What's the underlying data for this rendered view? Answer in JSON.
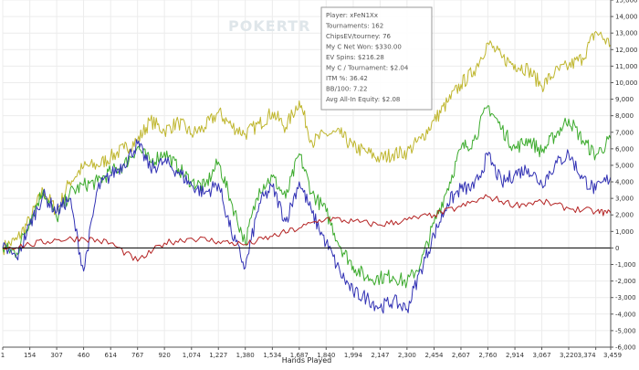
{
  "watermark": "POKERTR",
  "stats_box": {
    "lines": [
      "Player: xFeN1Xx",
      "Tournaments: 162",
      "ChipsEV/tourney: 76",
      "My C Net Won: $330.00",
      "EV Spins: $216.28",
      "My C / Tournament: $2.04",
      "ITM %: 36.42",
      "BB/100: 7.22",
      "Avg All-In Equity: $2.08"
    ]
  },
  "chart_data": {
    "type": "line",
    "title": "",
    "xlabel": "Hands Played",
    "ylabel": "",
    "xlim": [
      0,
      3459
    ],
    "ylim": [
      -6000,
      15000
    ],
    "x_ticks": [
      0,
      154,
      307,
      460,
      614,
      767,
      920,
      1074,
      1227,
      1380,
      1534,
      1687,
      1840,
      1994,
      2147,
      2300,
      2454,
      2607,
      2760,
      2914,
      3067,
      3220,
      3374,
      3459
    ],
    "x_tick_labels": [
      "1",
      "154",
      "307",
      "460",
      "614",
      "767",
      "920",
      "1,074",
      "1,227",
      "1,380",
      "1,534",
      "1,687",
      "1,840",
      "1,994",
      "2,147",
      "2,300",
      "2,454",
      "2,607",
      "2,760",
      "2,914",
      "3,067",
      "3,220",
      "3,374",
      "3,459"
    ],
    "y_ticks": [
      -6000,
      -5000,
      -4000,
      -3000,
      -2000,
      -1000,
      0,
      1000,
      2000,
      3000,
      4000,
      5000,
      6000,
      7000,
      8000,
      9000,
      10000,
      11000,
      12000,
      13000,
      14000,
      15000
    ],
    "y_tick_labels": [
      "-6,000",
      "-5,000",
      "-4,000",
      "-3,000",
      "-2,000",
      "-1,000",
      "0",
      "1,000",
      "2,000",
      "3,000",
      "4,000",
      "5,000",
      "6,000",
      "7,000",
      "8,000",
      "9,000",
      "10,000",
      "11,000",
      "12,000",
      "13,000",
      "14,000",
      "15,000"
    ],
    "grid": true,
    "series": [
      {
        "color": "#bfb62e",
        "x": [
          0,
          80,
          154,
          230,
          307,
          380,
          460,
          540,
          614,
          690,
          767,
          840,
          920,
          1000,
          1074,
          1150,
          1227,
          1300,
          1380,
          1460,
          1534,
          1610,
          1687,
          1760,
          1840,
          1920,
          1994,
          2070,
          2147,
          2220,
          2300,
          2380,
          2454,
          2530,
          2607,
          2680,
          2760,
          2840,
          2914,
          2990,
          3067,
          3140,
          3220,
          3300,
          3374,
          3459
        ],
        "y": [
          0,
          500,
          1700,
          3500,
          2200,
          4000,
          4900,
          5000,
          5500,
          6000,
          6500,
          7700,
          7100,
          7600,
          6900,
          7300,
          8200,
          7400,
          6900,
          7500,
          8200,
          7300,
          8900,
          6400,
          6900,
          6900,
          6100,
          5800,
          5400,
          5700,
          5800,
          6600,
          7700,
          8800,
          9900,
          10700,
          12400,
          11500,
          11100,
          10800,
          9800,
          10600,
          11000,
          11500,
          13100,
          12300
        ]
      },
      {
        "color": "#3dab2e",
        "x": [
          0,
          80,
          154,
          230,
          307,
          380,
          460,
          540,
          614,
          690,
          767,
          840,
          920,
          1000,
          1074,
          1150,
          1227,
          1300,
          1380,
          1460,
          1534,
          1610,
          1687,
          1760,
          1840,
          1920,
          1994,
          2070,
          2147,
          2220,
          2300,
          2380,
          2454,
          2530,
          2607,
          2680,
          2760,
          2840,
          2914,
          2990,
          3067,
          3140,
          3220,
          3300,
          3374,
          3459
        ],
        "y": [
          0,
          -300,
          1700,
          3500,
          1800,
          3300,
          3800,
          4000,
          4600,
          5000,
          6100,
          5200,
          5800,
          4800,
          4000,
          3700,
          5200,
          2800,
          300,
          3600,
          4300,
          3000,
          5700,
          3300,
          2200,
          100,
          -1100,
          -1800,
          -1800,
          -1700,
          -2100,
          -900,
          1500,
          3600,
          6000,
          6500,
          8600,
          7200,
          6000,
          6600,
          5800,
          6800,
          7800,
          6500,
          5600,
          6600
        ]
      },
      {
        "color": "#3232b4",
        "x": [
          0,
          80,
          154,
          230,
          307,
          380,
          460,
          540,
          614,
          690,
          767,
          840,
          920,
          1000,
          1074,
          1150,
          1227,
          1300,
          1380,
          1460,
          1534,
          1610,
          1687,
          1760,
          1840,
          1920,
          1994,
          2070,
          2147,
          2220,
          2300,
          2380,
          2454,
          2530,
          2607,
          2680,
          2760,
          2840,
          2914,
          2990,
          3067,
          3140,
          3220,
          3300,
          3374,
          3459
        ],
        "y": [
          0,
          -600,
          1400,
          3200,
          2200,
          3000,
          -1400,
          3600,
          4400,
          5100,
          6300,
          4800,
          5200,
          4600,
          3800,
          3300,
          3900,
          1000,
          -1200,
          2700,
          3700,
          1600,
          4000,
          2100,
          300,
          -1500,
          -2700,
          -3000,
          -3600,
          -3200,
          -3700,
          -1300,
          800,
          2700,
          3600,
          3600,
          5600,
          3900,
          4500,
          4800,
          3900,
          5000,
          5700,
          4200,
          3500,
          4300
        ]
      },
      {
        "color": "#b42323",
        "x": [
          0,
          154,
          307,
          460,
          614,
          767,
          920,
          1074,
          1227,
          1380,
          1534,
          1687,
          1840,
          1994,
          2147,
          2300,
          2454,
          2607,
          2760,
          2914,
          3067,
          3220,
          3374,
          3459
        ],
        "y": [
          0,
          200,
          500,
          600,
          300,
          -800,
          300,
          600,
          400,
          200,
          700,
          1200,
          1800,
          1600,
          1400,
          1700,
          2000,
          2500,
          3100,
          2600,
          2800,
          2400,
          2200,
          2100
        ]
      }
    ]
  }
}
